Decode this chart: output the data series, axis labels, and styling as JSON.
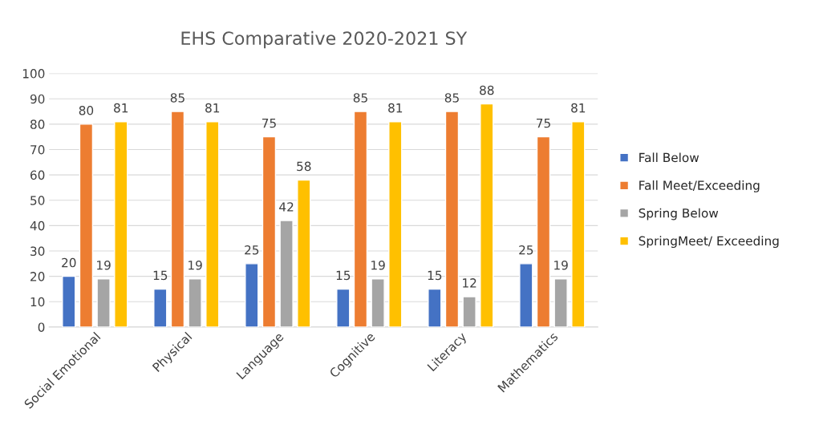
{
  "chart_data": {
    "type": "bar",
    "title": "EHS Comparative 2020-2021 SY",
    "categories": [
      "Social Emotional",
      "Physical",
      "Language",
      "Cognitive",
      "Literacy",
      "Mathematics"
    ],
    "series": [
      {
        "name": "Fall Below",
        "color": "#4472c4",
        "values": [
          20,
          15,
          25,
          15,
          15,
          25
        ]
      },
      {
        "name": "Fall Meet/Exceeding",
        "color": "#ed7d31",
        "values": [
          80,
          85,
          75,
          85,
          85,
          75
        ]
      },
      {
        "name": "Spring Below",
        "color": "#a5a5a5",
        "values": [
          19,
          19,
          42,
          19,
          12,
          19
        ]
      },
      {
        "name": "SpringMeet/ Exceeding",
        "color": "#ffc000",
        "values": [
          81,
          81,
          58,
          81,
          88,
          81
        ]
      }
    ],
    "ylim": [
      0,
      100
    ],
    "yticks": [
      0,
      10,
      20,
      30,
      40,
      50,
      60,
      70,
      80,
      90,
      100
    ],
    "grid": "y",
    "legend": "right",
    "data_labels": true
  }
}
